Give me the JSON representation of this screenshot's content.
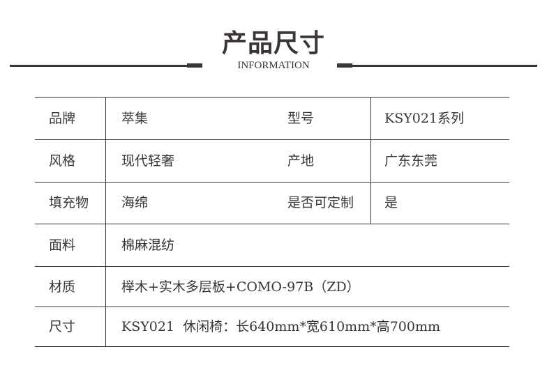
{
  "header": {
    "title": "产品尺寸",
    "subtitle": "INFORMATION"
  },
  "rows": [
    {
      "label": "品牌",
      "value": "萃集",
      "label2": "型号",
      "value2": "KSY021系列"
    },
    {
      "label": "风格",
      "value": "现代轻奢",
      "label2": "产地",
      "value2": "广东东莞"
    },
    {
      "label": "填充物",
      "value": "海绵",
      "label2": "是否可定制",
      "value2": "是"
    },
    {
      "label": "面料",
      "value": "棉麻混纺"
    },
    {
      "label": "材质",
      "value": "榉木+实木多层板+COMO-97B（ZD）"
    },
    {
      "label": "尺寸",
      "value": "KSY021  休闲椅：长640mm*宽610mm*高700mm"
    }
  ]
}
